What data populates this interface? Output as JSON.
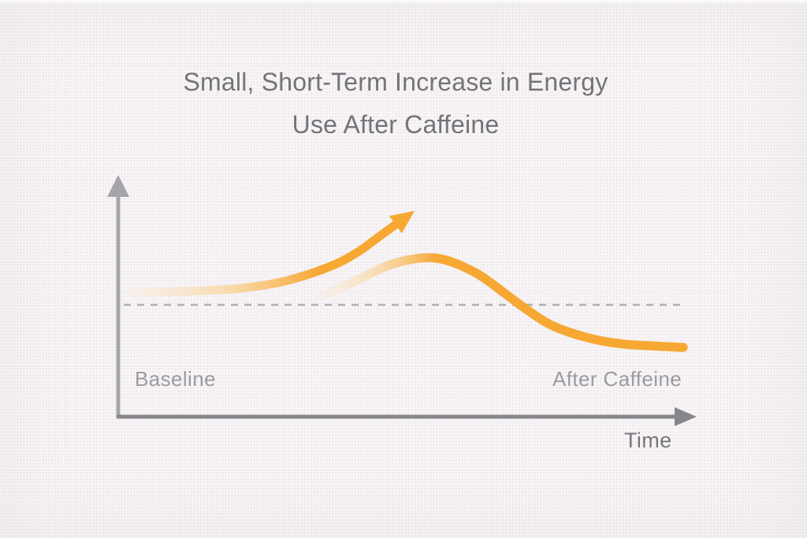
{
  "title": {
    "line1": "Small, Short-Term Increase in Energy",
    "line2": "Use After Caffeine"
  },
  "axis_labels": {
    "baseline": "Baseline",
    "after_caffeine": "After Caffeine",
    "time": "Time"
  },
  "colors": {
    "curve_orange": "#F6A833",
    "curve_mid": "#F9D69E",
    "curve_fade": "#FBEACD",
    "y_axis_gray": "#A6A5A9",
    "x_axis_gray": "#87868A",
    "dashed_gray": "#B1B0B4",
    "title_gray": "#747377",
    "label_light_gray": "#9C9BA0",
    "label_dark_gray": "#767579",
    "background": "#F5F2F4"
  },
  "chart_data": {
    "type": "line",
    "title": "Small, Short-Term Increase in Energy Use After Caffeine",
    "xlabel": "Time",
    "ylabel": "",
    "x_range": [
      0,
      10
    ],
    "y_range": [
      0,
      220
    ],
    "baseline_value": 100,
    "grid": false,
    "legend": false,
    "series": [
      {
        "name": "energy-use-after-caffeine",
        "style": "thick-solid, fades in from transparent at left, peaks just after caffeine then settles below baseline",
        "x": [
          3.4,
          4.03,
          4.75,
          5.5,
          6.2,
          6.78,
          7.11,
          7.6,
          8.2,
          8.9,
          10.0
        ],
        "y": [
          107.5,
          121,
          137,
          141.8,
          129.5,
          109.5,
          97.5,
          82,
          71.5,
          65,
          62
        ]
      },
      {
        "name": "perceived-spike-arrow",
        "style": "thick-solid with arrowhead, fades in from transparent at left, rises steeply suggesting a spike",
        "x": [
          0,
          0.9,
          1.9,
          2.75,
          3.6,
          4.1,
          4.45,
          4.8
        ],
        "y": [
          111,
          112,
          114.5,
          121,
          134.5,
          147.5,
          160,
          172.5
        ]
      }
    ],
    "annotations": [
      {
        "type": "dashed-line",
        "label": "Baseline",
        "value": 100
      },
      {
        "type": "label",
        "text": "After Caffeine",
        "position": "bottom-right, under tail of curve"
      },
      {
        "type": "label",
        "text": "Time",
        "position": "below x-axis arrowhead"
      }
    ]
  }
}
